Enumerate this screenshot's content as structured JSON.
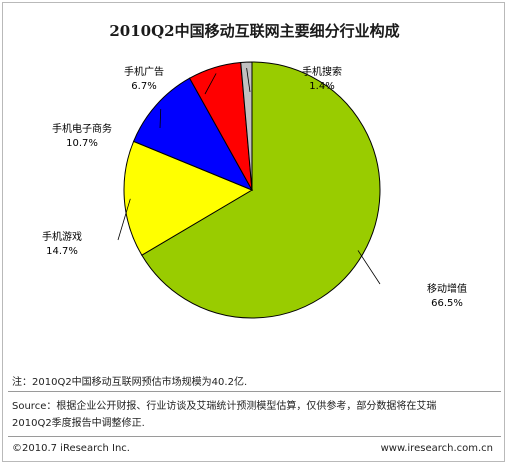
{
  "chart_data": {
    "type": "pie",
    "title": "2010Q2中国移动互联网主要细分行业构成",
    "start_clockwise_from_top": true,
    "slices": [
      {
        "label": "移动增值",
        "value": 66.5,
        "display": "66.5%",
        "color": "#99cc00"
      },
      {
        "label": "手机游戏",
        "value": 14.7,
        "display": "14.7%",
        "color": "#ffff00"
      },
      {
        "label": "手机电子商务",
        "value": 10.7,
        "display": "10.7%",
        "color": "#0000ff"
      },
      {
        "label": "手机广告",
        "value": 6.7,
        "display": "6.7%",
        "color": "#ff0000"
      },
      {
        "label": "手机搜索",
        "value": 1.4,
        "display": "1.4%",
        "color": "#c0c0c0"
      }
    ]
  },
  "footer": {
    "note": "注：2010Q2中国移动互联网预估市场规模为40.2亿.",
    "source_line1": "Source：根据企业公开财报、行业访谈及艾瑞统计预测模型估算，仅供参考，部分数据将在艾瑞",
    "source_line2": "2010Q2季度报告中调整修正.",
    "copyright": "©2010.7 iResearch Inc.",
    "website": "www.iresearch.com.cn"
  }
}
